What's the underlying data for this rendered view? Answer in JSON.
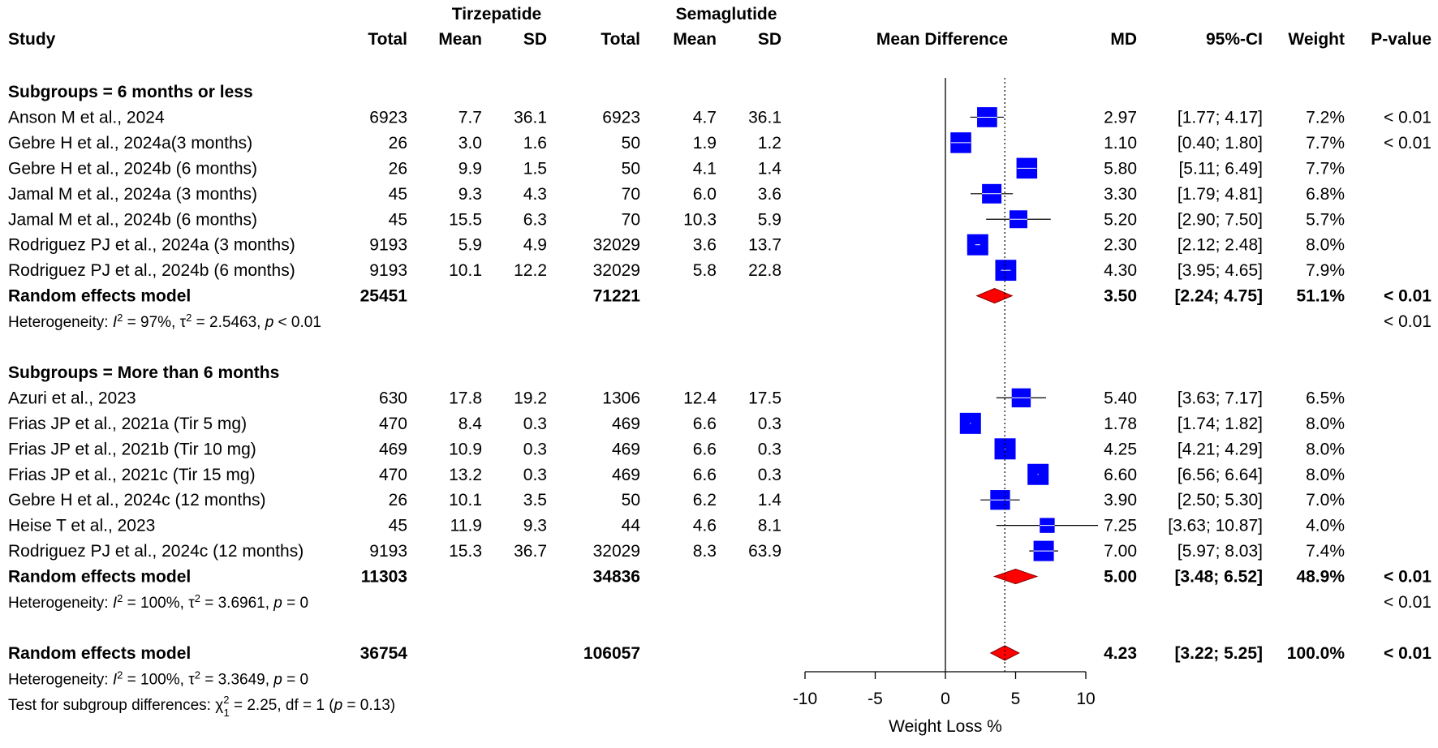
{
  "header": {
    "group1": "Tirzepatide",
    "group2": "Semaglutide",
    "study": "Study",
    "total": "Total",
    "mean": "Mean",
    "sd": "SD",
    "plot": "Mean Difference",
    "md": "MD",
    "ci": "95%-CI",
    "weight": "Weight",
    "pvalue": "P-value"
  },
  "colors": {
    "box": "#0000ff",
    "diamond": "#ff0000",
    "line": "#000000"
  },
  "chart_data": {
    "type": "forest",
    "xlabel": "Weight Loss %",
    "xlim": [
      -10,
      10
    ],
    "xticks": [
      -10,
      -5,
      0,
      5,
      10
    ],
    "pooled_line": 4.23,
    "rows": [
      {
        "kind": "subgroup",
        "label": "Subgroups = 6 months or less"
      },
      {
        "kind": "study",
        "study": "Anson M et al., 2024",
        "t_total": "6923",
        "t_mean": "7.7",
        "t_sd": "36.1",
        "s_total": "6923",
        "s_mean": "4.7",
        "s_sd": "36.1",
        "md": 2.97,
        "lo": 1.77,
        "hi": 4.17,
        "md_text": "2.97",
        "ci_text": "[1.77;  4.17]",
        "weight": 7.2,
        "weight_text": "7.2%",
        "p": "< 0.01"
      },
      {
        "kind": "study",
        "study": " Gebre H et al., 2024a(3 months)",
        "t_total": "26",
        "t_mean": "3.0",
        "t_sd": "1.6",
        "s_total": "50",
        "s_mean": "1.9",
        "s_sd": "1.2",
        "md": 1.1,
        "lo": 0.4,
        "hi": 1.8,
        "md_text": "1.10",
        "ci_text": "[0.40;  1.80]",
        "weight": 7.7,
        "weight_text": "7.7%",
        "p": "< 0.01"
      },
      {
        "kind": "study",
        "study": " Gebre H et al., 2024b (6 months)",
        "t_total": "26",
        "t_mean": "9.9",
        "t_sd": "1.5",
        "s_total": "50",
        "s_mean": "4.1",
        "s_sd": "1.4",
        "md": 5.8,
        "lo": 5.11,
        "hi": 6.49,
        "md_text": "5.80",
        "ci_text": "[5.11;  6.49]",
        "weight": 7.7,
        "weight_text": "7.7%",
        "p": ""
      },
      {
        "kind": "study",
        "study": "Jamal M et al., 2024a (3 months)",
        "t_total": "45",
        "t_mean": "9.3",
        "t_sd": "4.3",
        "s_total": "70",
        "s_mean": "6.0",
        "s_sd": "3.6",
        "md": 3.3,
        "lo": 1.79,
        "hi": 4.81,
        "md_text": "3.30",
        "ci_text": "[1.79;  4.81]",
        "weight": 6.8,
        "weight_text": "6.8%",
        "p": ""
      },
      {
        "kind": "study",
        "study": "Jamal M et al., 2024b (6 months)",
        "t_total": "45",
        "t_mean": "15.5",
        "t_sd": "6.3",
        "s_total": "70",
        "s_mean": "10.3",
        "s_sd": "5.9",
        "md": 5.2,
        "lo": 2.9,
        "hi": 7.5,
        "md_text": "5.20",
        "ci_text": "[2.90;  7.50]",
        "weight": 5.7,
        "weight_text": "5.7%",
        "p": ""
      },
      {
        "kind": "study",
        "study": " Rodriguez PJ et al., 2024a (3 months)",
        "t_total": "9193",
        "t_mean": "5.9",
        "t_sd": "4.9",
        "s_total": "32029",
        "s_mean": "3.6",
        "s_sd": "13.7",
        "md": 2.3,
        "lo": 2.12,
        "hi": 2.48,
        "md_text": "2.30",
        "ci_text": "[2.12;  2.48]",
        "weight": 8.0,
        "weight_text": "8.0%",
        "p": ""
      },
      {
        "kind": "study",
        "study": " Rodriguez PJ et al., 2024b (6 months)",
        "t_total": "9193",
        "t_mean": "10.1",
        "t_sd": "12.2",
        "s_total": "32029",
        "s_mean": "5.8",
        "s_sd": "22.8",
        "md": 4.3,
        "lo": 3.95,
        "hi": 4.65,
        "md_text": "4.30",
        "ci_text": "[3.95;  4.65]",
        "weight": 7.9,
        "weight_text": "7.9%",
        "p": ""
      },
      {
        "kind": "pooled",
        "study": "Random effects model",
        "t_total": "25451",
        "s_total": "71221",
        "md": 3.5,
        "lo": 2.24,
        "hi": 4.75,
        "md_text": "3.50",
        "ci_text": "[2.24;  4.75]",
        "weight_text": "51.1%",
        "p": "< 0.01"
      },
      {
        "kind": "het",
        "pre": "Heterogeneity: ",
        "i2": "= 97%, ",
        "tau": "= 2.5463, ",
        "ptxt": " < 0.01",
        "p": "< 0.01"
      },
      {
        "kind": "blank"
      },
      {
        "kind": "subgroup",
        "label": "Subgroups = More than 6 months"
      },
      {
        "kind": "study",
        "study": "Azuri et al., 2023",
        "t_total": "630",
        "t_mean": "17.8",
        "t_sd": "19.2",
        "s_total": "1306",
        "s_mean": "12.4",
        "s_sd": "17.5",
        "md": 5.4,
        "lo": 3.63,
        "hi": 7.17,
        "md_text": "5.40",
        "ci_text": "[3.63;  7.17]",
        "weight": 6.5,
        "weight_text": "6.5%",
        "p": ""
      },
      {
        "kind": "study",
        "study": "Frias JP et al., 2021a (Tir 5 mg)",
        "t_total": "470",
        "t_mean": "8.4",
        "t_sd": "0.3",
        "s_total": "469",
        "s_mean": "6.6",
        "s_sd": "0.3",
        "md": 1.78,
        "lo": 1.74,
        "hi": 1.82,
        "md_text": "1.78",
        "ci_text": "[1.74;  1.82]",
        "weight": 8.0,
        "weight_text": "8.0%",
        "p": ""
      },
      {
        "kind": "study",
        "study": "Frias JP et al., 2021b (Tir 10 mg)",
        "t_total": "469",
        "t_mean": "10.9",
        "t_sd": "0.3",
        "s_total": "469",
        "s_mean": "6.6",
        "s_sd": "0.3",
        "md": 4.25,
        "lo": 4.21,
        "hi": 4.29,
        "md_text": "4.25",
        "ci_text": "[4.21;  4.29]",
        "weight": 8.0,
        "weight_text": "8.0%",
        "p": ""
      },
      {
        "kind": "study",
        "study": "Frias JP et al., 2021c (Tir 15 mg)",
        "t_total": "470",
        "t_mean": "13.2",
        "t_sd": "0.3",
        "s_total": "469",
        "s_mean": "6.6",
        "s_sd": "0.3",
        "md": 6.6,
        "lo": 6.56,
        "hi": 6.64,
        "md_text": "6.60",
        "ci_text": "[6.56;  6.64]",
        "weight": 8.0,
        "weight_text": "8.0%",
        "p": ""
      },
      {
        "kind": "study",
        "study": " Gebre H et al., 2024c (12 months)",
        "t_total": "26",
        "t_mean": "10.1",
        "t_sd": "3.5",
        "s_total": "50",
        "s_mean": "6.2",
        "s_sd": "1.4",
        "md": 3.9,
        "lo": 2.5,
        "hi": 5.3,
        "md_text": "3.90",
        "ci_text": "[2.50;  5.30]",
        "weight": 7.0,
        "weight_text": "7.0%",
        "p": ""
      },
      {
        "kind": "study",
        "study": "Heise T et al., 2023",
        "t_total": "45",
        "t_mean": "11.9",
        "t_sd": "9.3",
        "s_total": "44",
        "s_mean": "4.6",
        "s_sd": "8.1",
        "md": 7.25,
        "lo": 3.63,
        "hi": 10.87,
        "md_text": "7.25",
        "ci_text": "[3.63; 10.87]",
        "weight": 4.0,
        "weight_text": "4.0%",
        "p": ""
      },
      {
        "kind": "study",
        "study": " Rodriguez PJ et al., 2024c (12 months)",
        "t_total": "9193",
        "t_mean": "15.3",
        "t_sd": "36.7",
        "s_total": "32029",
        "s_mean": "8.3",
        "s_sd": "63.9",
        "md": 7.0,
        "lo": 5.97,
        "hi": 8.03,
        "md_text": "7.00",
        "ci_text": "[5.97;  8.03]",
        "weight": 7.4,
        "weight_text": "7.4%",
        "p": ""
      },
      {
        "kind": "pooled",
        "study": "Random effects model",
        "t_total": "11303",
        "s_total": "34836",
        "md": 5.0,
        "lo": 3.48,
        "hi": 6.52,
        "md_text": "5.00",
        "ci_text": "[3.48;  6.52]",
        "weight_text": "48.9%",
        "p": "< 0.01"
      },
      {
        "kind": "het",
        "pre": "Heterogeneity: ",
        "i2": "= 100%, ",
        "tau": "= 3.6961, ",
        "ptxt": " = 0",
        "p": "< 0.01"
      },
      {
        "kind": "blank"
      },
      {
        "kind": "pooled",
        "study": "Random effects model",
        "t_total": "36754",
        "s_total": "106057",
        "md": 4.23,
        "lo": 3.22,
        "hi": 5.25,
        "md_text": "4.23",
        "ci_text": "[3.22;  5.25]",
        "weight_text": "100.0%",
        "p": "< 0.01"
      },
      {
        "kind": "het",
        "pre": "Heterogeneity: ",
        "i2": "= 100%, ",
        "tau": "= 3.3649, ",
        "ptxt": " = 0",
        "p": ""
      },
      {
        "kind": "test",
        "pre": "Test for subgroup differences: ",
        "chi": "= 2.25, df = 1 (",
        "ptxt": " = 0.13)"
      }
    ]
  }
}
